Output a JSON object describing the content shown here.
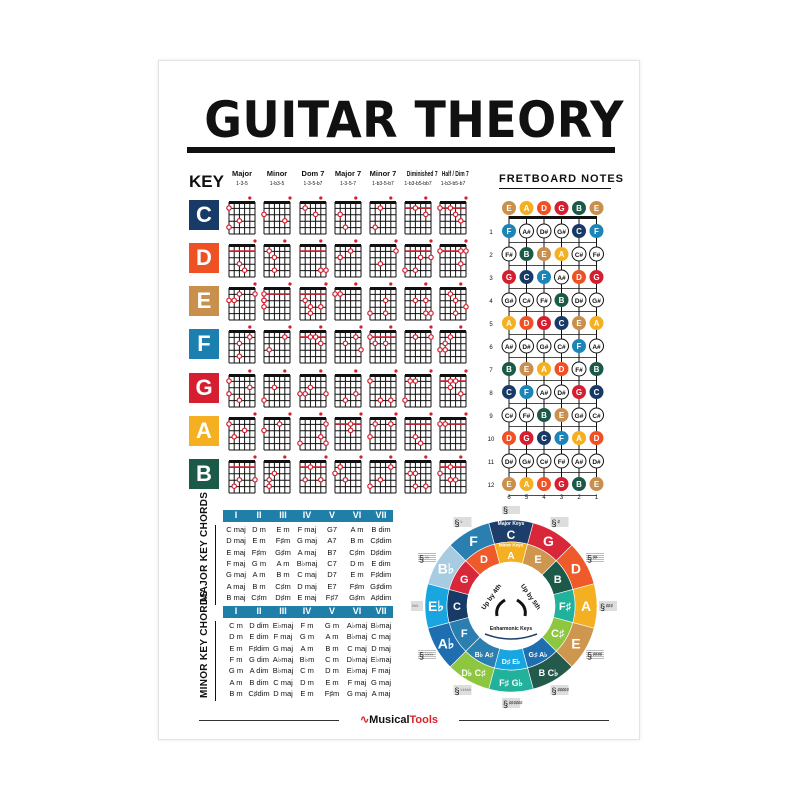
{
  "title": "GUITAR THEORY",
  "key_label": "KEY",
  "chord_types": [
    {
      "name": "Major",
      "formula": "1-3-5"
    },
    {
      "name": "Minor",
      "formula": "1-b3-5"
    },
    {
      "name": "Dom 7",
      "formula": "1-3-5-b7"
    },
    {
      "name": "Major 7",
      "formula": "1-3-5-7"
    },
    {
      "name": "Minor 7",
      "formula": "1-b3-5-b7"
    },
    {
      "name": "Diminished 7",
      "formula": "1-b3-b5-bb7"
    },
    {
      "name": "Half / Dim 7",
      "formula": "1-b3-b5-b7"
    }
  ],
  "keys": [
    {
      "label": "C",
      "color": "#183a66"
    },
    {
      "label": "D",
      "color": "#ef5124"
    },
    {
      "label": "E",
      "color": "#c98f4c"
    },
    {
      "label": "F",
      "color": "#1b7fb0"
    },
    {
      "label": "G",
      "color": "#d51f30"
    },
    {
      "label": "A",
      "color": "#f4b021"
    },
    {
      "label": "B",
      "color": "#1b5a48"
    }
  ],
  "fretboard": {
    "title": "FRETBOARD NOTES",
    "open": [
      "E",
      "A",
      "D",
      "G",
      "B",
      "E"
    ],
    "frets": [
      [
        "F",
        "A#",
        "D#",
        "G#",
        "C",
        "F"
      ],
      [
        "F#",
        "B",
        "E",
        "A",
        "C#",
        "F#"
      ],
      [
        "G",
        "C",
        "F",
        "A#",
        "D",
        "G"
      ],
      [
        "G#",
        "C#",
        "F#",
        "B",
        "D#",
        "G#"
      ],
      [
        "A",
        "D",
        "G",
        "C",
        "E",
        "A"
      ],
      [
        "A#",
        "D#",
        "G#",
        "C#",
        "F",
        "A#"
      ],
      [
        "B",
        "E",
        "A",
        "D",
        "F#",
        "B"
      ],
      [
        "C",
        "F",
        "A#",
        "D#",
        "G",
        "C"
      ],
      [
        "C#",
        "F#",
        "B",
        "E",
        "G#",
        "C#"
      ],
      [
        "D",
        "G",
        "C",
        "F",
        "A",
        "D"
      ],
      [
        "D#",
        "G#",
        "C#",
        "F#",
        "A#",
        "D#"
      ],
      [
        "E",
        "A",
        "D",
        "G",
        "B",
        "E"
      ]
    ],
    "fret_numbers": [
      "1",
      "2",
      "3",
      "4",
      "5",
      "6",
      "7",
      "8",
      "9",
      "10",
      "11",
      "12"
    ],
    "string_numbers": [
      "6",
      "5",
      "4",
      "3",
      "2",
      "1"
    ],
    "note_colors": {
      "E": "#c98f4c",
      "A": "#f4b021",
      "D": "#ef5124",
      "G": "#d51f30",
      "B": "#1b5a48",
      "C": "#183a66",
      "F": "#1b85b8"
    }
  },
  "major_table": {
    "label": "MAJOR KEY CHORDS",
    "header": [
      "I",
      "II",
      "III",
      "IV",
      "V",
      "VI",
      "VII"
    ],
    "rows": [
      [
        "C maj",
        "D m",
        "E m",
        "F maj",
        "G7",
        "A m",
        "B dim"
      ],
      [
        "D maj",
        "E m",
        "F♯m",
        "G maj",
        "A7",
        "B m",
        "C♯dim"
      ],
      [
        "E maj",
        "F♯m",
        "G♯m",
        "A maj",
        "B7",
        "C♯m",
        "D♯dim"
      ],
      [
        "F maj",
        "G m",
        "A m",
        "B♭maj",
        "C7",
        "D m",
        "E dim"
      ],
      [
        "G maj",
        "A m",
        "B m",
        "C maj",
        "D7",
        "E m",
        "F♯dim"
      ],
      [
        "A maj",
        "B m",
        "C♯m",
        "D maj",
        "E7",
        "F♯m",
        "G♯dim"
      ],
      [
        "B maj",
        "C♯m",
        "D♯m",
        "E maj",
        "F♯7",
        "G♯m",
        "A♯dim"
      ]
    ]
  },
  "minor_table": {
    "label": "MINOR KEY CHORDS",
    "header": [
      "I",
      "II",
      "III",
      "IV",
      "V",
      "VI",
      "VII"
    ],
    "rows": [
      [
        "C m",
        "D dim",
        "E♭maj",
        "F m",
        "G m",
        "A♭maj",
        "B♭maj"
      ],
      [
        "D m",
        "E dim",
        "F maj",
        "G m",
        "A m",
        "B♭maj",
        "C maj"
      ],
      [
        "E m",
        "F♯dim",
        "G maj",
        "A m",
        "B m",
        "C maj",
        "D maj"
      ],
      [
        "F m",
        "G dim",
        "A♭maj",
        "B♭m",
        "C m",
        "D♭maj",
        "E♭maj"
      ],
      [
        "G m",
        "A dim",
        "B♭maj",
        "C m",
        "D m",
        "E♭maj",
        "F maj"
      ],
      [
        "A m",
        "B dim",
        "C maj",
        "D m",
        "E m",
        "F maj",
        "G maj"
      ],
      [
        "B m",
        "C♯dim",
        "D maj",
        "E m",
        "F♯m",
        "G maj",
        "A maj"
      ]
    ]
  },
  "circle": {
    "major_label": "Major Keys",
    "minor_label": "Minor Keys",
    "up4": "Up by 4th",
    "up5": "Up by 5th",
    "enharmonic": "Enharmonic Keys",
    "major": [
      {
        "l": "C",
        "c": "#1d3e6a"
      },
      {
        "l": "G",
        "c": "#d9273a"
      },
      {
        "l": "D",
        "c": "#ee5a2a"
      },
      {
        "l": "A",
        "c": "#f5b021"
      },
      {
        "l": "E",
        "c": "#cf9650"
      },
      {
        "l": "B C♭",
        "c": "#245a4c"
      },
      {
        "l": "F♯ G♭",
        "c": "#22b19a"
      },
      {
        "l": "D♭ C♯",
        "c": "#8dc63f"
      },
      {
        "l": "A♭",
        "c": "#1f6fb0"
      },
      {
        "l": "E♭",
        "c": "#19a6e0"
      },
      {
        "l": "B♭",
        "c": "#a7cbe0"
      },
      {
        "l": "F",
        "c": "#2b7fb0"
      }
    ],
    "minor": [
      {
        "l": "A",
        "c": "#f5b021"
      },
      {
        "l": "E",
        "c": "#cf9650"
      },
      {
        "l": "B",
        "c": "#1b5a48"
      },
      {
        "l": "F♯",
        "c": "#22b19a"
      },
      {
        "l": "C♯",
        "c": "#8dc63f"
      },
      {
        "l": "G♯ A♭",
        "c": "#1f6fb0"
      },
      {
        "l": "D♯ E♭",
        "c": "#19a6e0"
      },
      {
        "l": "B♭ A♯",
        "c": "#2b7fb0"
      },
      {
        "l": "F",
        "c": "#2b7fb0"
      },
      {
        "l": "C",
        "c": "#183a66"
      },
      {
        "l": "G",
        "c": "#d9273a"
      },
      {
        "l": "D",
        "c": "#ee5a2a"
      }
    ],
    "signatures": [
      "",
      "♯",
      "♯♯",
      "♯♯♯",
      "♯♯♯♯",
      "♯♯♯♯♯",
      "♯♯♯♯♯♯",
      "♭♭♭♭♭",
      "♭♭♭♭",
      "♭♭♭",
      "♭♭",
      "♭"
    ]
  },
  "logo": {
    "part1": "Musical",
    "part2": "Tools"
  }
}
